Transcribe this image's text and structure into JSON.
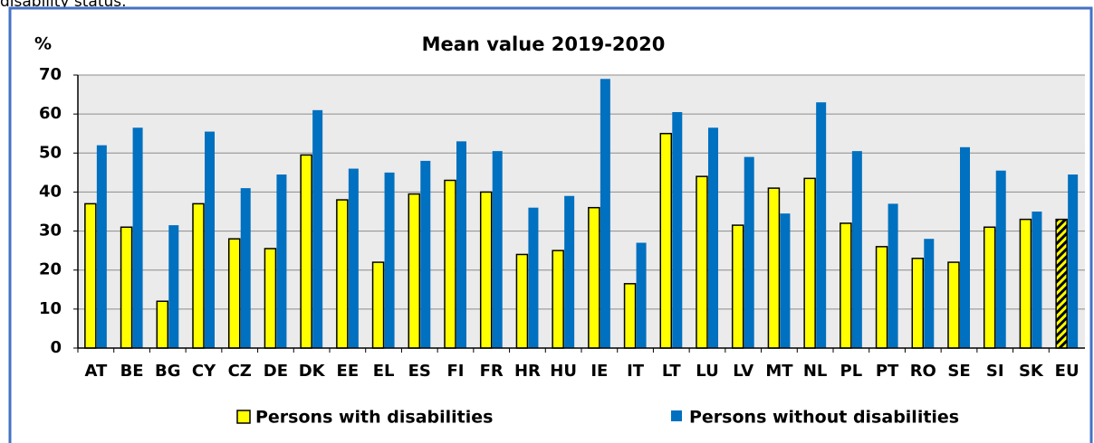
{
  "caption": "disability status.",
  "chart_data": {
    "type": "bar",
    "title": "Mean value 2019-2020",
    "y_label": "%",
    "categories": [
      "AT",
      "BE",
      "BG",
      "CY",
      "CZ",
      "DE",
      "DK",
      "EE",
      "EL",
      "ES",
      "FI",
      "FR",
      "HR",
      "HU",
      "IE",
      "IT",
      "LT",
      "LU",
      "LV",
      "MT",
      "NL",
      "PL",
      "PT",
      "RO",
      "SE",
      "SI",
      "SK",
      "EU"
    ],
    "series": [
      {
        "name": "Persons with disabilities",
        "color": "#ffff00",
        "values": [
          37,
          31,
          12,
          37,
          28,
          25.5,
          49.5,
          38,
          22,
          39.5,
          43,
          40,
          24,
          25,
          36,
          16.5,
          55,
          44,
          31.5,
          41,
          43.5,
          32,
          26,
          23,
          22,
          31,
          33,
          33
        ]
      },
      {
        "name": "Persons without disabilities",
        "color": "#0070c0",
        "values": [
          52,
          56.5,
          31.5,
          55.5,
          41,
          44.5,
          61,
          46,
          45,
          48,
          53,
          50.5,
          36,
          39,
          69,
          27,
          60.5,
          56.5,
          49,
          34.5,
          63,
          50.5,
          37,
          28,
          51.5,
          45.5,
          35,
          44.5
        ]
      }
    ],
    "ylim": [
      0,
      70
    ],
    "yticks": [
      0,
      10,
      20,
      30,
      40,
      50,
      60,
      70
    ],
    "grid": true,
    "legend": "bottom"
  }
}
